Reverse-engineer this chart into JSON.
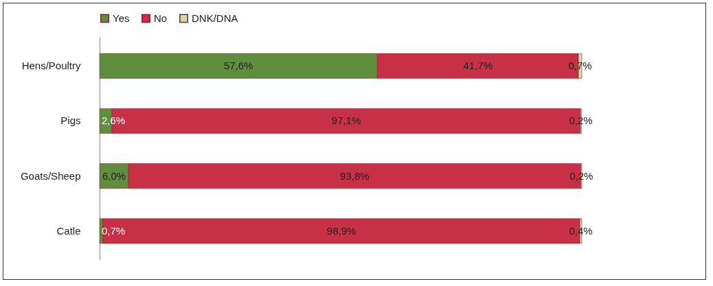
{
  "chart_data": {
    "type": "bar",
    "orientation": "horizontal",
    "stacked": true,
    "categories": [
      "Hens/Poultry",
      "Pigs",
      "Goats/Sheep",
      "Catle"
    ],
    "series": [
      {
        "name": "Yes",
        "color": "#5f8f3c",
        "values": [
          57.6,
          2.6,
          6.0,
          0.7
        ],
        "value_labels": [
          "57,6%",
          "2,6%",
          "6,0%",
          "0,7%"
        ]
      },
      {
        "name": "No",
        "color": "#c73046",
        "values": [
          41.7,
          97.1,
          93.8,
          98.9
        ],
        "value_labels": [
          "41,7%",
          "97,1%",
          "93,8%",
          "98,9%"
        ]
      },
      {
        "name": "DNK/DNA",
        "color": "#cfdcaa",
        "values": [
          0.7,
          0.2,
          0.2,
          0.4
        ],
        "value_labels": [
          "0,7%",
          "0,2%",
          "0,2%",
          "0,4%"
        ]
      }
    ],
    "legend": "top",
    "tick_labels": "y"
  }
}
